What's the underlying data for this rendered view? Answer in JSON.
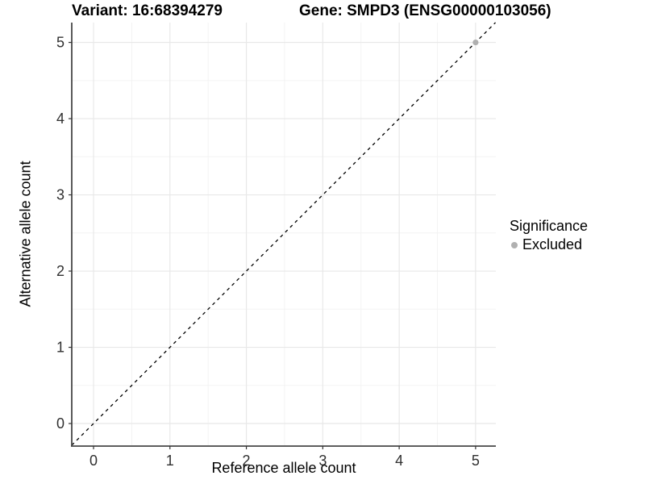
{
  "titles": {
    "variant": "Variant: 16:68394279",
    "gene": "Gene: SMPD3 (ENSG00000103056)"
  },
  "chart_data": {
    "type": "scatter",
    "title_left": "Variant: 16:68394279",
    "title_right": "Gene: SMPD3 (ENSG00000103056)",
    "xlabel": "Reference allele count",
    "ylabel": "Alternative allele count",
    "xlim": [
      -0.285,
      5.265
    ],
    "ylim": [
      -0.296,
      5.26
    ],
    "xticks": [
      0,
      1,
      2,
      3,
      4,
      5
    ],
    "yticks": [
      0,
      1,
      2,
      3,
      4,
      5
    ],
    "minor_xticks": [
      0.5,
      1.5,
      2.5,
      3.5,
      4.5
    ],
    "minor_yticks": [
      0.5,
      1.5,
      2.5,
      3.5,
      4.5
    ],
    "grid": true,
    "points": [
      {
        "x": 5,
        "y": 5,
        "significance": "Excluded"
      }
    ],
    "reference_line": {
      "kind": "abline",
      "slope": 1,
      "intercept": 0,
      "style": "dashed",
      "color": "#000000"
    },
    "legend": {
      "title": "Significance",
      "position": "right",
      "items": [
        {
          "label": "Excluded",
          "color": "#b0b0b0"
        }
      ]
    },
    "colors": {
      "panel_background": "#ffffff",
      "grid_major": "#e8e8e8",
      "grid_minor": "#f3f3f3",
      "axis_line": "#474747",
      "tick_mark": "#333333",
      "tick_label": "#303030",
      "excluded_point": "#b0b0b0"
    }
  }
}
